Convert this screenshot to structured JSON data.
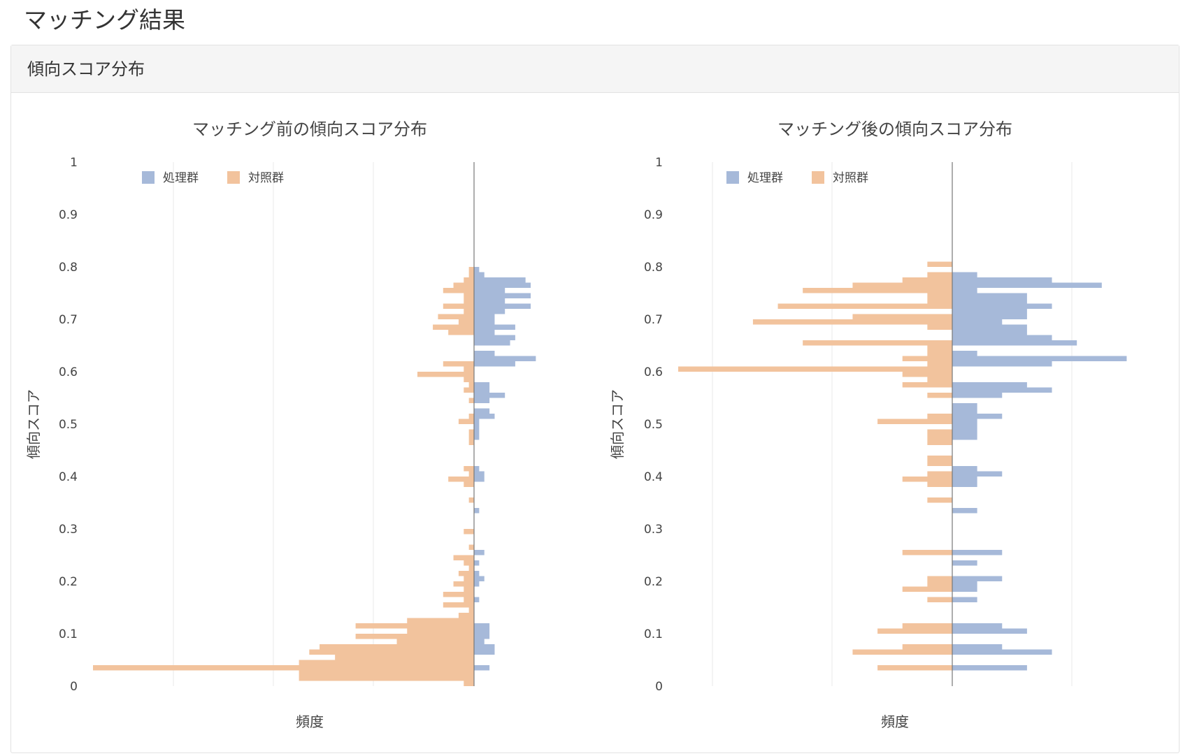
{
  "page": {
    "title": "マッチング結果"
  },
  "panel": {
    "header": "傾向スコア分布"
  },
  "colors": {
    "treated": "#a6b9d9",
    "control": "#f2c39d",
    "grid": "#e8e8e8",
    "zero": "#777777",
    "text": "#444444"
  },
  "chart_data": [
    {
      "type": "bar",
      "orientation": "horizontal",
      "title": "マッチング前の傾向スコア分布",
      "xlabel": "頻度",
      "ylabel": "傾向スコア",
      "ylim": [
        0,
        1
      ],
      "yticks": [
        "0",
        "0.1",
        "0.2",
        "0.3",
        "0.4",
        "0.5",
        "0.6",
        "0.7",
        "0.8",
        "0.9",
        "1"
      ],
      "bin_width": 0.01,
      "legend_position": "top-left",
      "grid": true,
      "xlim": [
        -37,
        7
      ],
      "series": [
        {
          "name": "処理群",
          "bins": [
            [
              0.03,
              1.5
            ],
            [
              0.06,
              2
            ],
            [
              0.07,
              2
            ],
            [
              0.08,
              1
            ],
            [
              0.09,
              1.5
            ],
            [
              0.1,
              1.5
            ],
            [
              0.11,
              1.5
            ],
            [
              0.16,
              0.5
            ],
            [
              0.19,
              0.5
            ],
            [
              0.2,
              1
            ],
            [
              0.21,
              0.5
            ],
            [
              0.23,
              0.5
            ],
            [
              0.25,
              1
            ],
            [
              0.33,
              0.5
            ],
            [
              0.39,
              1
            ],
            [
              0.4,
              1
            ],
            [
              0.41,
              0.5
            ],
            [
              0.47,
              0.5
            ],
            [
              0.48,
              0.5
            ],
            [
              0.49,
              0.5
            ],
            [
              0.5,
              0.5
            ],
            [
              0.51,
              2
            ],
            [
              0.52,
              1.5
            ],
            [
              0.54,
              1.5
            ],
            [
              0.55,
              3
            ],
            [
              0.56,
              1.5
            ],
            [
              0.57,
              1.5
            ],
            [
              0.61,
              4
            ],
            [
              0.62,
              6
            ],
            [
              0.63,
              2
            ],
            [
              0.65,
              3.5
            ],
            [
              0.66,
              4
            ],
            [
              0.67,
              2
            ],
            [
              0.68,
              4
            ],
            [
              0.69,
              2
            ],
            [
              0.7,
              2
            ],
            [
              0.71,
              3
            ],
            [
              0.72,
              5.5
            ],
            [
              0.73,
              3
            ],
            [
              0.74,
              5.5
            ],
            [
              0.75,
              3
            ],
            [
              0.76,
              5.5
            ],
            [
              0.77,
              5
            ],
            [
              0.78,
              1
            ],
            [
              0.79,
              0.5
            ]
          ]
        },
        {
          "name": "対照群",
          "bins": [
            [
              0.0,
              1
            ],
            [
              0.01,
              17
            ],
            [
              0.02,
              17
            ],
            [
              0.03,
              37
            ],
            [
              0.04,
              17
            ],
            [
              0.05,
              13.5
            ],
            [
              0.06,
              16
            ],
            [
              0.07,
              15
            ],
            [
              0.08,
              7.5
            ],
            [
              0.09,
              11.5
            ],
            [
              0.1,
              6.5
            ],
            [
              0.11,
              11.5
            ],
            [
              0.12,
              6.5
            ],
            [
              0.13,
              1.5
            ],
            [
              0.14,
              0.5
            ],
            [
              0.15,
              3
            ],
            [
              0.16,
              1
            ],
            [
              0.17,
              3
            ],
            [
              0.18,
              1
            ],
            [
              0.19,
              2
            ],
            [
              0.2,
              1
            ],
            [
              0.21,
              1.5
            ],
            [
              0.22,
              0.5
            ],
            [
              0.23,
              1
            ],
            [
              0.24,
              2
            ],
            [
              0.26,
              0.5
            ],
            [
              0.29,
              1
            ],
            [
              0.35,
              0.5
            ],
            [
              0.38,
              1
            ],
            [
              0.39,
              2.5
            ],
            [
              0.4,
              0.5
            ],
            [
              0.41,
              1
            ],
            [
              0.46,
              0.5
            ],
            [
              0.47,
              0.5
            ],
            [
              0.48,
              0.5
            ],
            [
              0.5,
              1.5
            ],
            [
              0.51,
              0.5
            ],
            [
              0.54,
              0.5
            ],
            [
              0.56,
              1
            ],
            [
              0.57,
              0.5
            ],
            [
              0.58,
              1
            ],
            [
              0.59,
              5.5
            ],
            [
              0.6,
              1
            ],
            [
              0.61,
              3
            ],
            [
              0.67,
              2.5
            ],
            [
              0.68,
              4
            ],
            [
              0.69,
              1.5
            ],
            [
              0.7,
              3.5
            ],
            [
              0.71,
              1
            ],
            [
              0.72,
              3
            ],
            [
              0.73,
              1
            ],
            [
              0.74,
              1
            ],
            [
              0.75,
              3
            ],
            [
              0.76,
              2
            ],
            [
              0.77,
              1
            ],
            [
              0.78,
              0.5
            ],
            [
              0.79,
              0.5
            ]
          ]
        }
      ]
    },
    {
      "type": "bar",
      "orientation": "horizontal",
      "title": "マッチング後の傾向スコア分布",
      "xlabel": "頻度",
      "ylabel": "傾向スコア",
      "ylim": [
        0,
        1
      ],
      "yticks": [
        "0",
        "0.1",
        "0.2",
        "0.3",
        "0.4",
        "0.5",
        "0.6",
        "0.7",
        "0.8",
        "0.9",
        "1"
      ],
      "bin_width": 0.01,
      "legend_position": "top-left",
      "grid": true,
      "xlim": [
        -11,
        7
      ],
      "series": [
        {
          "name": "処理群",
          "bins": [
            [
              0.03,
              3
            ],
            [
              0.06,
              4
            ],
            [
              0.07,
              2
            ],
            [
              0.1,
              3
            ],
            [
              0.11,
              2
            ],
            [
              0.16,
              1
            ],
            [
              0.18,
              1
            ],
            [
              0.19,
              1
            ],
            [
              0.2,
              2
            ],
            [
              0.23,
              1
            ],
            [
              0.25,
              2
            ],
            [
              0.33,
              1
            ],
            [
              0.38,
              1
            ],
            [
              0.39,
              1
            ],
            [
              0.4,
              2
            ],
            [
              0.41,
              1
            ],
            [
              0.47,
              1
            ],
            [
              0.48,
              1
            ],
            [
              0.49,
              1
            ],
            [
              0.5,
              1
            ],
            [
              0.51,
              2
            ],
            [
              0.52,
              1
            ],
            [
              0.53,
              1
            ],
            [
              0.55,
              2
            ],
            [
              0.56,
              4
            ],
            [
              0.57,
              3
            ],
            [
              0.61,
              4
            ],
            [
              0.62,
              7
            ],
            [
              0.63,
              1
            ],
            [
              0.65,
              5
            ],
            [
              0.66,
              4
            ],
            [
              0.67,
              3
            ],
            [
              0.68,
              3
            ],
            [
              0.69,
              2
            ],
            [
              0.7,
              3
            ],
            [
              0.71,
              3
            ],
            [
              0.72,
              4
            ],
            [
              0.73,
              3
            ],
            [
              0.74,
              3
            ],
            [
              0.75,
              1
            ],
            [
              0.76,
              6
            ],
            [
              0.77,
              4
            ],
            [
              0.78,
              1
            ]
          ]
        },
        {
          "name": "対照群",
          "bins": [
            [
              0.03,
              3
            ],
            [
              0.06,
              4
            ],
            [
              0.07,
              2
            ],
            [
              0.1,
              3
            ],
            [
              0.11,
              2
            ],
            [
              0.16,
              1
            ],
            [
              0.18,
              2
            ],
            [
              0.19,
              1
            ],
            [
              0.2,
              1
            ],
            [
              0.25,
              2
            ],
            [
              0.35,
              1
            ],
            [
              0.38,
              1
            ],
            [
              0.39,
              2
            ],
            [
              0.4,
              1
            ],
            [
              0.42,
              1
            ],
            [
              0.43,
              1
            ],
            [
              0.46,
              1
            ],
            [
              0.47,
              1
            ],
            [
              0.48,
              1
            ],
            [
              0.5,
              3
            ],
            [
              0.51,
              1
            ],
            [
              0.55,
              1
            ],
            [
              0.57,
              2
            ],
            [
              0.58,
              1
            ],
            [
              0.59,
              2
            ],
            [
              0.6,
              11
            ],
            [
              0.61,
              1
            ],
            [
              0.62,
              2
            ],
            [
              0.63,
              1
            ],
            [
              0.64,
              1
            ],
            [
              0.65,
              6
            ],
            [
              0.68,
              1
            ],
            [
              0.69,
              8
            ],
            [
              0.7,
              4
            ],
            [
              0.72,
              7
            ],
            [
              0.73,
              1
            ],
            [
              0.74,
              1
            ],
            [
              0.75,
              6
            ],
            [
              0.76,
              4
            ],
            [
              0.77,
              2
            ],
            [
              0.78,
              1
            ],
            [
              0.8,
              1
            ]
          ]
        }
      ]
    }
  ]
}
